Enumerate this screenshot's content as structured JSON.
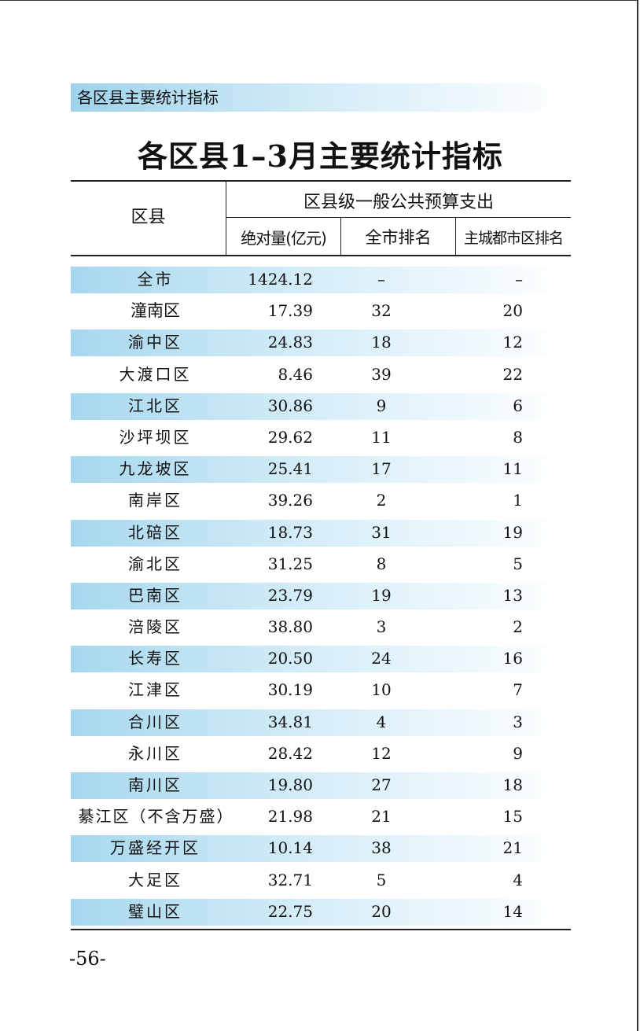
{
  "section_label": "各区县主要统计指标",
  "title": "各区县1–3月主要统计指标",
  "table": {
    "header": {
      "district": "区县",
      "group": "区县级一般公共预算支出",
      "absolute": "绝对量(亿元)",
      "city_rank": "全市排名",
      "main_city_rank": "主城都市区排名"
    },
    "rows": [
      {
        "name": "全市",
        "value": "1424.12",
        "city_rank": "–",
        "main_rank": "–"
      },
      {
        "name": "潼南区",
        "value": "17.39",
        "city_rank": "32",
        "main_rank": "20"
      },
      {
        "name": "渝中区",
        "value": "24.83",
        "city_rank": "18",
        "main_rank": "12"
      },
      {
        "name": "大渡口区",
        "value": "8.46",
        "city_rank": "39",
        "main_rank": "22"
      },
      {
        "name": "江北区",
        "value": "30.86",
        "city_rank": "9",
        "main_rank": "6"
      },
      {
        "name": "沙坪坝区",
        "value": "29.62",
        "city_rank": "11",
        "main_rank": "8"
      },
      {
        "name": "九龙坡区",
        "value": "25.41",
        "city_rank": "17",
        "main_rank": "11"
      },
      {
        "name": "南岸区",
        "value": "39.26",
        "city_rank": "2",
        "main_rank": "1"
      },
      {
        "name": "北碚区",
        "value": "18.73",
        "city_rank": "31",
        "main_rank": "19"
      },
      {
        "name": "渝北区",
        "value": "31.25",
        "city_rank": "8",
        "main_rank": "5"
      },
      {
        "name": "巴南区",
        "value": "23.79",
        "city_rank": "19",
        "main_rank": "13"
      },
      {
        "name": "涪陵区",
        "value": "38.80",
        "city_rank": "3",
        "main_rank": "2"
      },
      {
        "name": "长寿区",
        "value": "20.50",
        "city_rank": "24",
        "main_rank": "16"
      },
      {
        "name": "江津区",
        "value": "30.19",
        "city_rank": "10",
        "main_rank": "7"
      },
      {
        "name": "合川区",
        "value": "34.81",
        "city_rank": "4",
        "main_rank": "3"
      },
      {
        "name": "永川区",
        "value": "28.42",
        "city_rank": "12",
        "main_rank": "9"
      },
      {
        "name": "南川区",
        "value": "19.80",
        "city_rank": "27",
        "main_rank": "18"
      },
      {
        "name": "綦江区（不含万盛）",
        "value": "21.98",
        "city_rank": "21",
        "main_rank": "15"
      },
      {
        "name": "万盛经开区",
        "value": "10.14",
        "city_rank": "38",
        "main_rank": "21"
      },
      {
        "name": "大足区",
        "value": "32.71",
        "city_rank": "5",
        "main_rank": "4"
      },
      {
        "name": "璧山区",
        "value": "22.75",
        "city_rank": "20",
        "main_rank": "14"
      }
    ]
  },
  "page_number": "-56-"
}
